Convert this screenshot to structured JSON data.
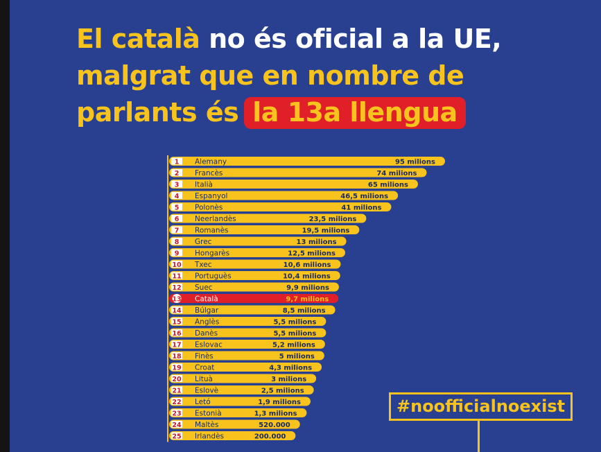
{
  "title": {
    "part1": "El català",
    "part2": "no és oficial a la UE,",
    "line2": "malgrat que en nombre de",
    "line3a": "parlants és",
    "line3b": "la 13a llengua"
  },
  "hashtag": "#noofficialnoexist",
  "colors": {
    "background": "#28408f",
    "bar": "#f7c31c",
    "highlight": "#e11f28",
    "text_dark": "#1b2a5c"
  },
  "chart_data": {
    "type": "bar",
    "orientation": "horizontal",
    "highlight_rank": 13,
    "rows": [
      {
        "rank": "1",
        "name": "Alemany",
        "value": 95,
        "label": "95 milions"
      },
      {
        "rank": "2",
        "name": "Francès",
        "value": 74,
        "label": "74 milions"
      },
      {
        "rank": "3",
        "name": "Italià",
        "value": 65,
        "label": "65 milions"
      },
      {
        "rank": "4",
        "name": "Espanyol",
        "value": 46.5,
        "label": "46,5 milions"
      },
      {
        "rank": "5",
        "name": "Polonès",
        "value": 41,
        "label": "41 milions"
      },
      {
        "rank": "6",
        "name": "Neerlandès",
        "value": 23.5,
        "label": "23,5 milions"
      },
      {
        "rank": "7",
        "name": "Romanès",
        "value": 19.5,
        "label": "19,5 milions"
      },
      {
        "rank": "8",
        "name": "Grec",
        "value": 13,
        "label": "13 milions"
      },
      {
        "rank": "9",
        "name": "Hongarès",
        "value": 12.5,
        "label": "12,5 milions"
      },
      {
        "rank": "10",
        "name": "Txec",
        "value": 10.6,
        "label": "10,6 milions"
      },
      {
        "rank": "11",
        "name": "Portuguès",
        "value": 10.4,
        "label": "10,4 milions"
      },
      {
        "rank": "12",
        "name": "Suec",
        "value": 9.9,
        "label": "9,9 milions"
      },
      {
        "rank": "13",
        "name": "Català",
        "value": 9.7,
        "label": "9,7 milions"
      },
      {
        "rank": "14",
        "name": "Búlgar",
        "value": 8.5,
        "label": "8,5 milions"
      },
      {
        "rank": "15",
        "name": "Anglès",
        "value": 5.5,
        "label": "5,5 milions"
      },
      {
        "rank": "16",
        "name": "Danès",
        "value": 5.5,
        "label": "5,5 milions"
      },
      {
        "rank": "17",
        "name": "Eslovac",
        "value": 5.2,
        "label": "5,2 milions"
      },
      {
        "rank": "18",
        "name": "Finès",
        "value": 5,
        "label": "5 milions"
      },
      {
        "rank": "19",
        "name": "Croat",
        "value": 4.3,
        "label": "4,3 milions"
      },
      {
        "rank": "20",
        "name": "Lituà",
        "value": 3,
        "label": "3 milions"
      },
      {
        "rank": "21",
        "name": "Eslovè",
        "value": 2.5,
        "label": "2,5 milions"
      },
      {
        "rank": "22",
        "name": "Letó",
        "value": 1.9,
        "label": "1,9 milions"
      },
      {
        "rank": "23",
        "name": "Estonià",
        "value": 1.3,
        "label": "1,3 milions"
      },
      {
        "rank": "24",
        "name": "Maltès",
        "value": 0.52,
        "label": "520.000"
      },
      {
        "rank": "25",
        "name": "Irlandès",
        "value": 0.2,
        "label": "200.000"
      }
    ]
  }
}
